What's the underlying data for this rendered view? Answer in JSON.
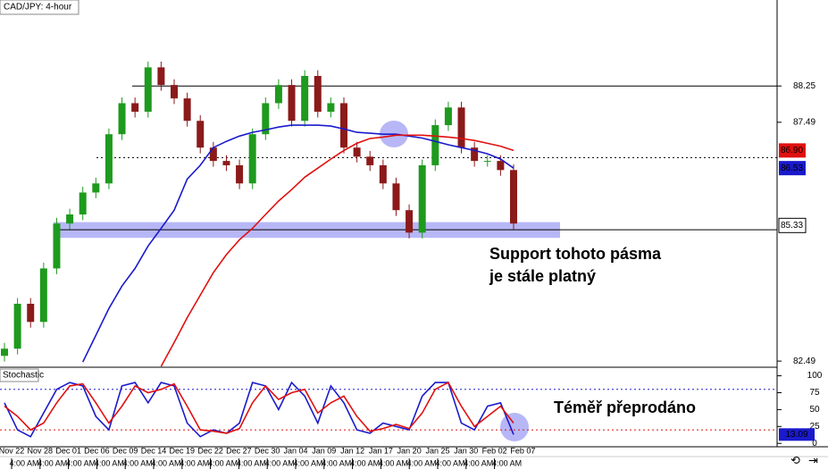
{
  "chart_data": [
    {
      "type": "candlestick",
      "title": "CAD/JPY: 4-hour",
      "ylim": [
        82.38,
        90.05
      ],
      "yticks": [
        88.25,
        87.49,
        82.49
      ],
      "up_color": "#1e9a1e",
      "down_color": "#8b1a1a",
      "open": [
        82.6,
        82.75,
        83.69,
        83.31,
        84.43,
        85.37,
        85.56,
        86.02,
        86.21,
        87.24,
        87.89,
        87.71,
        88.64,
        88.27,
        87.99,
        87.52,
        86.96,
        86.68,
        86.59,
        86.21,
        87.24,
        87.89,
        88.27,
        87.52,
        88.46,
        87.71,
        87.89,
        86.96,
        86.77,
        86.59,
        86.21,
        85.65,
        85.18,
        86.59,
        87.43,
        87.8,
        86.96,
        86.68,
        86.68,
        86.49
      ],
      "high": [
        82.87,
        83.81,
        83.81,
        84.55,
        85.49,
        85.68,
        86.14,
        86.33,
        87.36,
        88.01,
        88.01,
        88.76,
        88.76,
        88.39,
        88.11,
        87.64,
        87.08,
        86.8,
        86.71,
        87.36,
        88.01,
        88.39,
        88.39,
        88.58,
        88.58,
        88.01,
        88.01,
        87.08,
        86.89,
        86.71,
        86.33,
        85.77,
        86.71,
        87.55,
        87.92,
        87.92,
        87.08,
        86.8,
        86.8,
        86.61
      ],
      "low": [
        82.48,
        82.63,
        83.19,
        83.19,
        84.31,
        85.25,
        85.44,
        85.9,
        86.09,
        87.12,
        87.59,
        87.59,
        88.15,
        87.87,
        87.4,
        86.84,
        86.56,
        86.47,
        86.09,
        86.09,
        87.12,
        87.77,
        87.4,
        87.4,
        87.59,
        87.59,
        86.84,
        86.65,
        86.47,
        86.09,
        85.53,
        85.06,
        85.06,
        86.47,
        87.31,
        86.84,
        86.56,
        86.56,
        86.37,
        85.25
      ],
      "close": [
        82.75,
        83.69,
        83.31,
        84.43,
        85.37,
        85.56,
        86.02,
        86.21,
        87.24,
        87.89,
        87.71,
        88.64,
        88.27,
        87.99,
        87.52,
        86.96,
        86.68,
        86.59,
        86.21,
        87.24,
        87.89,
        88.27,
        87.52,
        88.46,
        87.71,
        87.89,
        86.96,
        86.77,
        86.59,
        86.21,
        85.65,
        85.18,
        86.59,
        87.43,
        87.8,
        86.96,
        86.68,
        86.68,
        86.49,
        85.37
      ],
      "series": [
        {
          "color": "#1a1acc",
          "values": [
            null,
            null,
            null,
            null,
            null,
            null,
            82.47,
            83.03,
            83.59,
            84.06,
            84.43,
            84.9,
            85.27,
            85.65,
            86.3,
            86.59,
            86.96,
            87.09,
            87.2,
            87.28,
            87.33,
            87.39,
            87.43,
            87.43,
            87.43,
            87.41,
            87.35,
            87.28,
            87.26,
            87.24,
            87.24,
            87.2,
            87.16,
            87.09,
            87.02,
            86.96,
            86.9,
            86.83,
            86.72,
            86.53
          ]
        },
        {
          "color": "#e01010",
          "values": [
            null,
            null,
            null,
            null,
            null,
            null,
            null,
            null,
            null,
            null,
            null,
            null,
            82.38,
            82.88,
            83.4,
            83.87,
            84.34,
            84.72,
            85.03,
            85.27,
            85.56,
            85.84,
            86.08,
            86.34,
            86.53,
            86.72,
            86.9,
            87.05,
            87.15,
            87.18,
            87.22,
            87.22,
            87.22,
            87.2,
            87.18,
            87.15,
            87.11,
            87.05,
            86.99,
            86.9
          ]
        }
      ],
      "levels": [
        {
          "value": 88.25,
          "style": "solid"
        },
        {
          "value": 86.75,
          "style": "dotted"
        },
        {
          "value": 85.24,
          "style": "solid"
        }
      ],
      "support_zone": [
        85.07,
        85.4
      ],
      "price_tags": [
        {
          "value": 86.9,
          "label": "86.90",
          "color": "#e01010"
        },
        {
          "value": 86.53,
          "color": "#1a1acc"
        },
        {
          "value": 85.33,
          "color": "#ffffff"
        }
      ],
      "annotations": [
        "Support tohoto pásma",
        "je stále platný"
      ],
      "x_labels": [
        "Nov 22",
        "Nov 28",
        "Dec 01",
        "Dec 06",
        "Dec 09",
        "Dec 14",
        "Dec 19",
        "Dec 22",
        "Dec 27",
        "Dec 30",
        "Jan 04",
        "Jan 09",
        "Jan 12",
        "Jan 17",
        "Jan 20",
        "Jan 25",
        "Jan 30",
        "Feb 02",
        "Feb 07"
      ],
      "time_label": "4:00 AM"
    },
    {
      "type": "line",
      "title": "Stochastic",
      "ylim": [
        -5,
        110
      ],
      "yticks": [
        100,
        75,
        50,
        25,
        0
      ],
      "series": [
        {
          "color": "#1a1acc",
          "values": [
            60,
            20,
            10,
            45,
            80,
            90,
            85,
            40,
            20,
            85,
            90,
            60,
            90,
            85,
            30,
            10,
            20,
            15,
            30,
            90,
            85,
            50,
            90,
            70,
            30,
            85,
            60,
            20,
            15,
            30,
            25,
            20,
            70,
            90,
            90,
            30,
            20,
            55,
            60,
            13.09
          ]
        },
        {
          "color": "#e01010",
          "values": [
            55,
            40,
            20,
            30,
            60,
            85,
            88,
            60,
            30,
            55,
            85,
            75,
            80,
            88,
            55,
            20,
            18,
            15,
            22,
            60,
            85,
            65,
            75,
            80,
            45,
            60,
            70,
            40,
            18,
            22,
            28,
            22,
            45,
            80,
            90,
            55,
            25,
            40,
            55,
            30
          ]
        }
      ],
      "levels": [
        {
          "value": 80,
          "color": "#1a1acc"
        },
        {
          "value": 20,
          "color": "#e01010"
        }
      ],
      "last_value": 13.09,
      "annotation": "Téměř přeprodáno"
    }
  ]
}
